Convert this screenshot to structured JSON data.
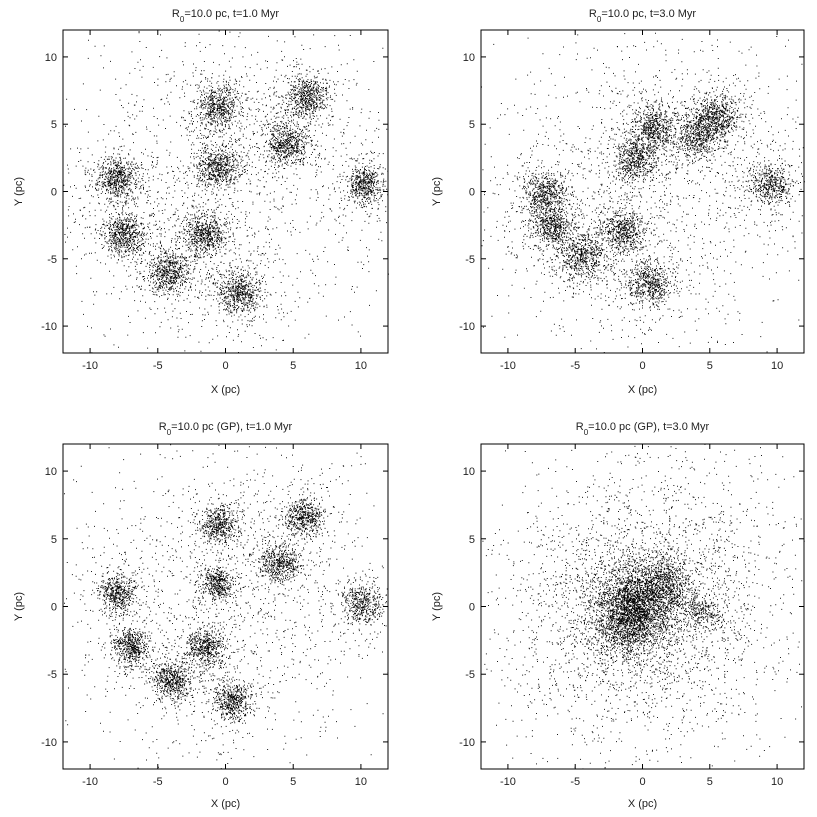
{
  "figure": {
    "background": "#ffffff",
    "point_color": "#000000"
  },
  "chart_data": [
    {
      "type": "scatter",
      "title_main": "R",
      "title_sub": "0",
      "title_rest": "=10.0 pc, t=1.0 Myr",
      "xlabel": "X (pc)",
      "ylabel": "Y (pc)",
      "xlim": [
        -12,
        12
      ],
      "ylim": [
        -12,
        12
      ],
      "xticks": [
        -10,
        -5,
        0,
        5,
        10
      ],
      "yticks": [
        -10,
        -5,
        0,
        5,
        10
      ],
      "grid": false,
      "legend": "none",
      "clusters": [
        {
          "x": -8.0,
          "y": 1.0,
          "spread": 0.8,
          "n": 700
        },
        {
          "x": -7.5,
          "y": -3.2,
          "spread": 0.8,
          "n": 700
        },
        {
          "x": -4.2,
          "y": -6.0,
          "spread": 0.8,
          "n": 700
        },
        {
          "x": -1.5,
          "y": -3.2,
          "spread": 0.8,
          "n": 700
        },
        {
          "x": 1.0,
          "y": -7.6,
          "spread": 0.8,
          "n": 700
        },
        {
          "x": -0.6,
          "y": 1.8,
          "spread": 0.8,
          "n": 700
        },
        {
          "x": -0.5,
          "y": 6.3,
          "spread": 0.8,
          "n": 700
        },
        {
          "x": 4.5,
          "y": 3.5,
          "spread": 0.8,
          "n": 700
        },
        {
          "x": 6.0,
          "y": 7.0,
          "spread": 0.8,
          "n": 700
        },
        {
          "x": 10.3,
          "y": 0.5,
          "spread": 0.7,
          "n": 600
        }
      ],
      "background_points": 1200,
      "background_spread": 6.5
    },
    {
      "type": "scatter",
      "title_main": "R",
      "title_sub": "0",
      "title_rest": "=10.0 pc, t=3.0 Myr",
      "xlabel": "X (pc)",
      "ylabel": "Y (pc)",
      "xlim": [
        -12,
        12
      ],
      "ylim": [
        -12,
        12
      ],
      "xticks": [
        -10,
        -5,
        0,
        5,
        10
      ],
      "yticks": [
        -10,
        -5,
        0,
        5,
        10
      ],
      "grid": false,
      "legend": "none",
      "clusters": [
        {
          "x": -7.2,
          "y": -0.2,
          "spread": 0.8,
          "n": 650
        },
        {
          "x": -6.8,
          "y": -2.6,
          "spread": 0.8,
          "n": 650
        },
        {
          "x": -4.5,
          "y": -4.8,
          "spread": 0.9,
          "n": 700
        },
        {
          "x": -1.5,
          "y": -3.0,
          "spread": 0.8,
          "n": 650
        },
        {
          "x": 0.5,
          "y": -6.8,
          "spread": 0.8,
          "n": 650
        },
        {
          "x": -0.5,
          "y": 2.5,
          "spread": 0.8,
          "n": 650
        },
        {
          "x": 0.8,
          "y": 4.8,
          "spread": 0.8,
          "n": 650
        },
        {
          "x": 4.2,
          "y": 4.2,
          "spread": 0.9,
          "n": 700
        },
        {
          "x": 5.4,
          "y": 5.6,
          "spread": 0.8,
          "n": 650
        },
        {
          "x": 9.5,
          "y": 0.5,
          "spread": 0.8,
          "n": 600
        }
      ],
      "background_points": 1300,
      "background_spread": 6.5
    },
    {
      "type": "scatter",
      "title_main": "R",
      "title_sub": "0",
      "title_rest": "=10.0 pc (GP), t=1.0 Myr",
      "xlabel": "X (pc)",
      "ylabel": "Y (pc)",
      "xlim": [
        -12,
        12
      ],
      "ylim": [
        -12,
        12
      ],
      "xticks": [
        -10,
        -5,
        0,
        5,
        10
      ],
      "yticks": [
        -10,
        -5,
        0,
        5,
        10
      ],
      "grid": false,
      "legend": "none",
      "clusters": [
        {
          "x": -8.0,
          "y": 1.0,
          "spread": 0.7,
          "n": 600
        },
        {
          "x": -7.0,
          "y": -3.0,
          "spread": 0.7,
          "n": 600
        },
        {
          "x": -4.0,
          "y": -5.5,
          "spread": 0.7,
          "n": 600
        },
        {
          "x": -1.5,
          "y": -3.0,
          "spread": 0.7,
          "n": 600
        },
        {
          "x": 0.5,
          "y": -7.0,
          "spread": 0.7,
          "n": 600
        },
        {
          "x": -0.6,
          "y": 1.7,
          "spread": 0.6,
          "n": 500
        },
        {
          "x": -0.5,
          "y": 6.0,
          "spread": 0.7,
          "n": 600
        },
        {
          "x": 4.0,
          "y": 3.2,
          "spread": 0.7,
          "n": 600
        },
        {
          "x": 5.8,
          "y": 6.5,
          "spread": 0.7,
          "n": 600
        },
        {
          "x": 10.0,
          "y": 0.2,
          "spread": 0.8,
          "n": 550
        }
      ],
      "background_points": 1200,
      "background_spread": 6.5
    },
    {
      "type": "scatter",
      "title_main": "R",
      "title_sub": "0",
      "title_rest": "=10.0 pc (GP), t=3.0 Myr",
      "xlabel": "X (pc)",
      "ylabel": "Y (pc)",
      "xlim": [
        -12,
        12
      ],
      "ylim": [
        -12,
        12
      ],
      "xticks": [
        -10,
        -5,
        0,
        5,
        10
      ],
      "yticks": [
        -10,
        -5,
        0,
        5,
        10
      ],
      "grid": false,
      "legend": "none",
      "clusters": [
        {
          "x": -1.0,
          "y": -0.8,
          "spread": 1.5,
          "n": 2400
        },
        {
          "x": 1.5,
          "y": 1.5,
          "spread": 1.1,
          "n": 1000
        },
        {
          "x": -0.2,
          "y": 0.5,
          "spread": 1.2,
          "n": 900
        },
        {
          "x": 4.5,
          "y": -0.4,
          "spread": 0.6,
          "n": 250
        }
      ],
      "background_points": 2600,
      "background_spread": 5.5
    }
  ]
}
